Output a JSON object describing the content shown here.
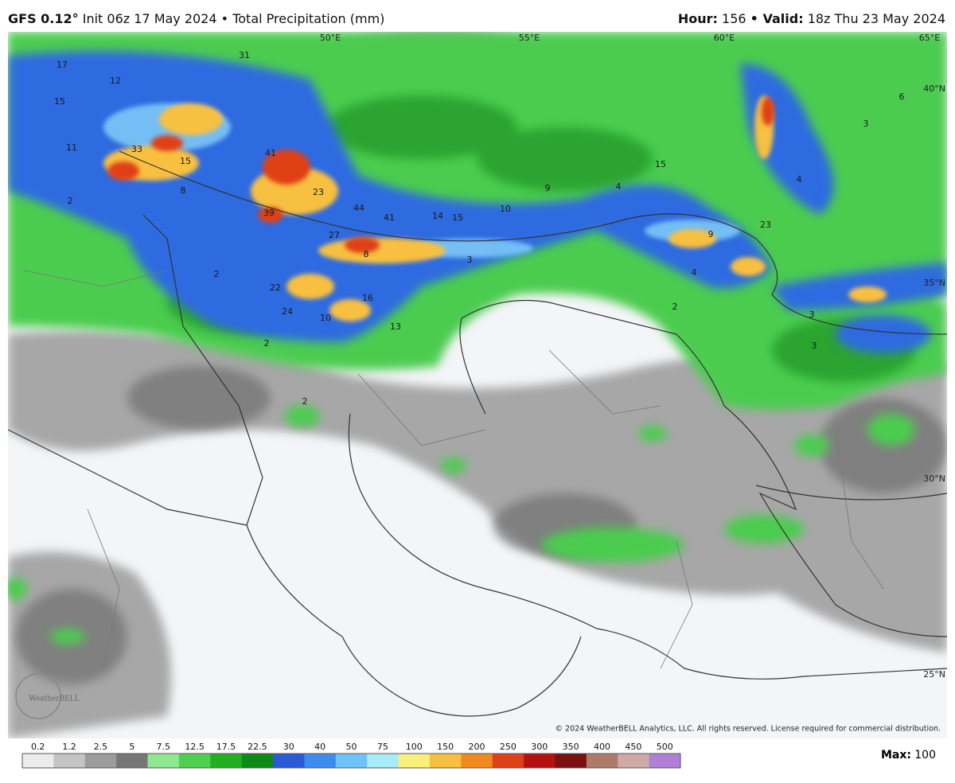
{
  "header": {
    "model": "GFS 0.12°",
    "init": "Init 06z 17 May 2024",
    "product": "• Total Precipitation (mm)",
    "hour_label": "Hour:",
    "hour": "156",
    "valid_label": "• Valid:",
    "valid": "18z Thu 23 May 2024"
  },
  "map": {
    "lon_labels": [
      "50°E",
      "55°E",
      "60°E",
      "65°E"
    ],
    "lat_labels": [
      "40°N",
      "35°N",
      "30°N",
      "25°N"
    ],
    "point_values": [
      "17",
      "31",
      "12",
      "15",
      "11",
      "33",
      "15",
      "8",
      "41",
      "23",
      "2",
      "39",
      "44",
      "41",
      "14",
      "15",
      "10",
      "9",
      "4",
      "15",
      "27",
      "8",
      "3",
      "2",
      "22",
      "16",
      "24",
      "10",
      "13",
      "2",
      "2",
      "9",
      "4",
      "23",
      "4",
      "3",
      "6",
      "2",
      "3",
      "3"
    ],
    "copyright": "© 2024 WeatherBELL Analytics, LLC. All rights reserved. License required for commercial distribution.",
    "logo": "WeatherBELL"
  },
  "legend": {
    "labels": [
      "0.2",
      "1.2",
      "2.5",
      "5",
      "7.5",
      "12.5",
      "17.5",
      "22.5",
      "30",
      "40",
      "50",
      "75",
      "100",
      "150",
      "200",
      "250",
      "300",
      "350",
      "400",
      "450",
      "500"
    ],
    "colors": [
      "#ececec",
      "#c4c4c4",
      "#9c9c9c",
      "#767676",
      "#8ee88e",
      "#50d050",
      "#22b022",
      "#0e8a16",
      "#2a5ad8",
      "#3c8cf0",
      "#6ec4f8",
      "#a8ecf8",
      "#f8f07a",
      "#f8c040",
      "#f08a20",
      "#e04018",
      "#b81010",
      "#7a1010",
      "#b07a6a",
      "#d0a8a8",
      "#b080d8"
    ],
    "max_label": "Max:",
    "max": "100"
  }
}
